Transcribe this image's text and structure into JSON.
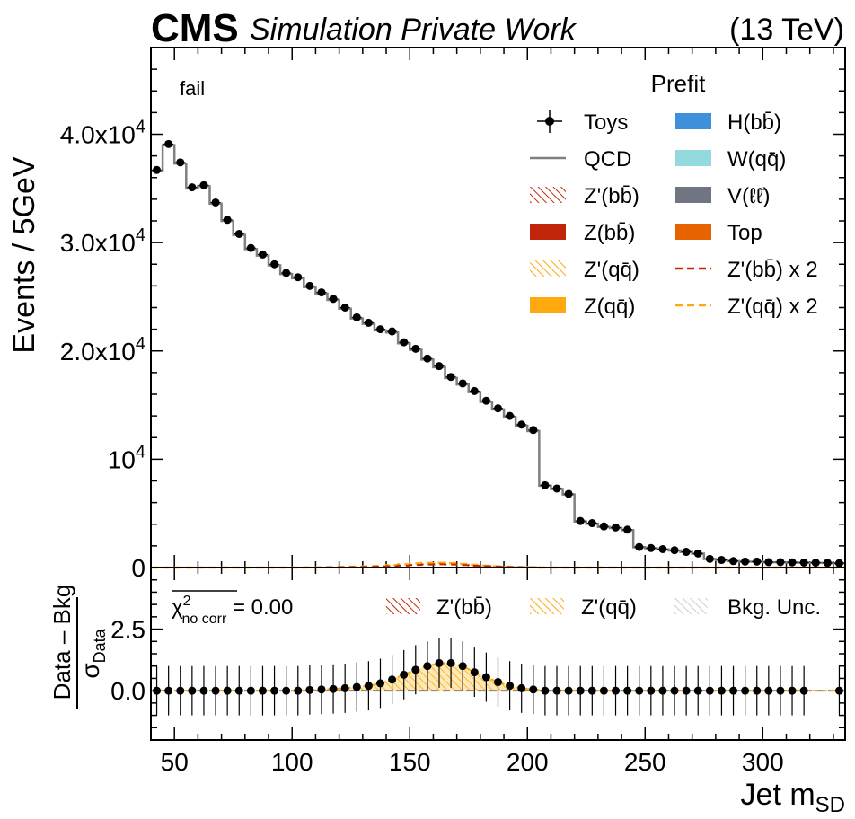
{
  "header": {
    "experiment": "CMS",
    "subtitle": "Simulation Private Work",
    "energy": "(13 TeV)"
  },
  "chart_data": [
    {
      "type": "line",
      "region_label": "fail",
      "ylabel": "Events / 5GeV",
      "xlim": [
        40,
        335
      ],
      "ylim": [
        0,
        48000
      ],
      "yticks": [
        {
          "value": 0,
          "label": "0"
        },
        {
          "value": 10000,
          "label": "10^4"
        },
        {
          "value": 20000,
          "label": "2.0 x 10^4"
        },
        {
          "value": 30000,
          "label": "3.0 x 10^4"
        },
        {
          "value": 40000,
          "label": "4.0 x 10^4"
        }
      ],
      "legend": {
        "title": "Prefit",
        "placement": "top-right",
        "entries": [
          {
            "label": "Toys",
            "style": "errorbar",
            "color": "#000000"
          },
          {
            "label": "QCD",
            "style": "line",
            "color": "#808080"
          },
          {
            "label": "Z'(bb̄)",
            "style": "hatch",
            "color": "#c1260b"
          },
          {
            "label": "Z(bb̄)",
            "style": "fill",
            "color": "#c1260b"
          },
          {
            "label": "Z'(qq̄)",
            "style": "hatch",
            "color": "#ffa90e"
          },
          {
            "label": "Z(qq̄)",
            "style": "fill",
            "color": "#ffa90e"
          },
          {
            "label": "H(bb̄)",
            "style": "fill",
            "color": "#3f90da"
          },
          {
            "label": "W(qq̄)",
            "style": "fill",
            "color": "#92dadd"
          },
          {
            "label": "V(ℓℓ̄)",
            "style": "fill",
            "color": "#717581"
          },
          {
            "label": "Top",
            "style": "fill",
            "color": "#e76300"
          },
          {
            "label": "Z'(bb̄) x 2",
            "style": "dashed",
            "color": "#c1260b"
          },
          {
            "label": "Z'(qq̄) x 2",
            "style": "dashed",
            "color": "#ffa90e"
          }
        ]
      },
      "bin_edges": [
        40,
        45,
        50,
        55,
        60,
        65,
        70,
        75,
        80,
        85,
        90,
        95,
        100,
        105,
        110,
        115,
        120,
        125,
        130,
        135,
        140,
        145,
        150,
        155,
        160,
        165,
        170,
        175,
        180,
        185,
        190,
        195,
        200,
        205,
        210,
        215,
        220,
        225,
        230,
        235,
        240,
        245,
        250,
        255,
        260,
        265,
        270,
        275,
        280,
        285,
        290,
        295,
        300,
        305,
        310,
        315,
        320,
        325,
        330,
        335
      ],
      "series": [
        {
          "name": "Toys",
          "values": [
            36700,
            39100,
            37400,
            35100,
            35300,
            33700,
            32100,
            30800,
            29500,
            28900,
            28000,
            27200,
            26800,
            26000,
            25400,
            24800,
            24000,
            23100,
            22600,
            22000,
            21800,
            20800,
            20200,
            19300,
            18600,
            17600,
            17000,
            16300,
            15400,
            14700,
            14000,
            13200,
            12700,
            7600,
            7300,
            6800,
            4300,
            4100,
            3800,
            3700,
            3500,
            1900,
            1800,
            1700,
            1600,
            1450,
            1300,
            800,
            700,
            600,
            550,
            550,
            500,
            500,
            480,
            460,
            450,
            430,
            400
          ]
        },
        {
          "name": "QCD",
          "values": [
            36600,
            39000,
            37300,
            35000,
            35200,
            33600,
            32000,
            30700,
            29400,
            28800,
            27900,
            27100,
            26700,
            25900,
            25300,
            24700,
            23900,
            23000,
            22500,
            21900,
            21700,
            20700,
            20100,
            19200,
            18500,
            17500,
            16900,
            16200,
            15300,
            14600,
            13900,
            13100,
            12600,
            7550,
            7250,
            6750,
            4250,
            4050,
            3750,
            3650,
            3450,
            1880,
            1780,
            1680,
            1580,
            1430,
            1280,
            790,
            690,
            590,
            540,
            540,
            490,
            490,
            470,
            450,
            440,
            420,
            390
          ]
        },
        {
          "name": "Z'(bb̄) x 2",
          "values": [
            0,
            0,
            0,
            0,
            0,
            0,
            0,
            0,
            0,
            0,
            0,
            0,
            0,
            0,
            0,
            20,
            30,
            40,
            60,
            80,
            120,
            180,
            240,
            280,
            300,
            280,
            230,
            170,
            120,
            80,
            50,
            30,
            20,
            0,
            0,
            0,
            0,
            0,
            0,
            0,
            0,
            0,
            0,
            0,
            0,
            0,
            0,
            0,
            0,
            0,
            0,
            0,
            0,
            0,
            0,
            0,
            0,
            0,
            0
          ]
        },
        {
          "name": "Z'(qq̄) x 2",
          "values": [
            0,
            0,
            0,
            0,
            0,
            0,
            0,
            0,
            0,
            0,
            0,
            0,
            0,
            10,
            20,
            30,
            50,
            70,
            100,
            150,
            220,
            300,
            380,
            420,
            440,
            400,
            330,
            250,
            170,
            110,
            70,
            40,
            20,
            0,
            0,
            0,
            0,
            0,
            0,
            0,
            0,
            0,
            0,
            0,
            0,
            0,
            0,
            0,
            0,
            0,
            0,
            0,
            0,
            0,
            0,
            0,
            0,
            0,
            0
          ]
        }
      ]
    },
    {
      "type": "scatter",
      "ylabel": "(Data - Bkg) / σ_Data",
      "xlabel": "Jet m_SD",
      "xlim": [
        40,
        335
      ],
      "ylim": [
        -2.0,
        5.0
      ],
      "yticks": [
        0.0,
        2.5
      ],
      "xticks": [
        50,
        100,
        150,
        200,
        250,
        300
      ],
      "chi2_label": "χ²_no corr = 0.00",
      "legend": {
        "placement": "top",
        "entries": [
          {
            "label": "Z'(bb̄)",
            "style": "hatch",
            "color": "#c1260b"
          },
          {
            "label": "Z'(qq̄)",
            "style": "hatch",
            "color": "#ffa90e"
          },
          {
            "label": "Bkg. Unc.",
            "style": "hatch",
            "color": "#cccccc"
          }
        ]
      },
      "x": [
        42.5,
        47.5,
        52.5,
        57.5,
        62.5,
        67.5,
        72.5,
        77.5,
        82.5,
        87.5,
        92.5,
        97.5,
        102.5,
        107.5,
        112.5,
        117.5,
        122.5,
        127.5,
        132.5,
        137.5,
        142.5,
        147.5,
        152.5,
        157.5,
        162.5,
        167.5,
        172.5,
        177.5,
        182.5,
        187.5,
        192.5,
        197.5,
        202.5,
        207.5,
        212.5,
        217.5,
        222.5,
        227.5,
        232.5,
        237.5,
        242.5,
        247.5,
        252.5,
        257.5,
        262.5,
        267.5,
        272.5,
        277.5,
        282.5,
        287.5,
        292.5,
        297.5,
        302.5,
        307.5,
        312.5,
        317.5,
        332.5
      ],
      "y": [
        0,
        0,
        0,
        0,
        0,
        0,
        0,
        0,
        0,
        0,
        0,
        0,
        0,
        0.03,
        0.05,
        0.07,
        0.1,
        0.15,
        0.2,
        0.3,
        0.45,
        0.65,
        0.85,
        1.0,
        1.12,
        1.12,
        1.0,
        0.75,
        0.55,
        0.35,
        0.2,
        0.1,
        0.05,
        0,
        0,
        0,
        0,
        0,
        0,
        0,
        0,
        0,
        0,
        0,
        0,
        0,
        0,
        0,
        0,
        0,
        0,
        0,
        0,
        0,
        0,
        0,
        0
      ],
      "yerr": [
        1.0,
        1.0,
        1.0,
        1.0,
        1.0,
        1.0,
        1.0,
        1.0,
        1.0,
        1.0,
        1.0,
        1.0,
        1.0,
        1.0,
        1.0,
        1.0,
        1.0,
        1.0,
        1.0,
        1.0,
        1.0,
        1.0,
        1.0,
        1.0,
        1.0,
        1.0,
        1.0,
        1.0,
        1.0,
        1.0,
        1.0,
        1.0,
        1.0,
        1.0,
        1.0,
        1.0,
        1.0,
        1.0,
        1.0,
        1.0,
        1.0,
        1.0,
        1.0,
        1.0,
        1.0,
        1.0,
        1.0,
        1.0,
        1.0,
        1.0,
        1.0,
        1.0,
        1.0,
        1.0,
        1.0,
        1.0,
        1.0
      ],
      "signal_stack": [
        0,
        0,
        0,
        0,
        0,
        0,
        0,
        0,
        0,
        0,
        0,
        0,
        0,
        0.03,
        0.05,
        0.07,
        0.1,
        0.15,
        0.2,
        0.3,
        0.45,
        0.65,
        0.85,
        1.0,
        1.12,
        1.12,
        1.0,
        0.75,
        0.55,
        0.35,
        0.2,
        0.1,
        0.05,
        0,
        0,
        0,
        0,
        0,
        0,
        0,
        0,
        0,
        0,
        0,
        0,
        0,
        0,
        0,
        0,
        0,
        0,
        0,
        0,
        0,
        0,
        0,
        0
      ]
    }
  ]
}
